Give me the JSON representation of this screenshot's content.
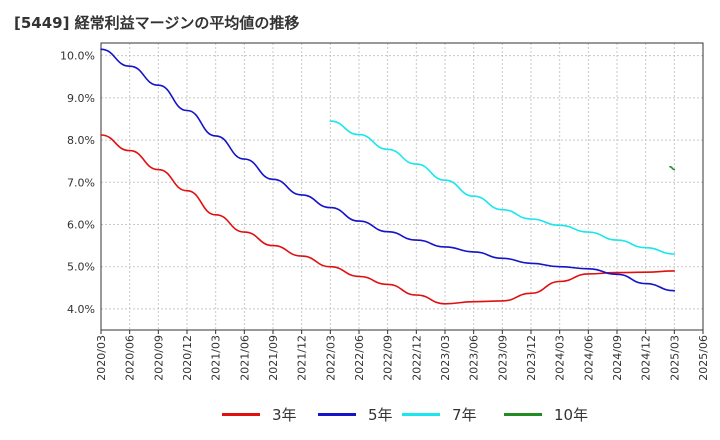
{
  "page": {
    "title": "[5449]  経常利益マージンの平均値の推移"
  },
  "chart_data": {
    "type": "line",
    "title": "[5449]  経常利益マージンの平均値の推移",
    "xlabel": "",
    "ylabel": "",
    "x_ticks": [
      "2020/03",
      "2020/06",
      "2020/09",
      "2020/12",
      "2021/03",
      "2021/06",
      "2021/09",
      "2021/12",
      "2022/03",
      "2022/06",
      "2022/09",
      "2022/12",
      "2023/03",
      "2023/06",
      "2023/09",
      "2023/12",
      "2024/03",
      "2024/06",
      "2024/09",
      "2024/12",
      "2025/03",
      "2025/06"
    ],
    "y_ticks": [
      "4.0%",
      "5.0%",
      "6.0%",
      "7.0%",
      "8.0%",
      "9.0%",
      "10.0%"
    ],
    "ylim": [
      3.5,
      10.3
    ],
    "grid": true,
    "legend_position": "bottom",
    "series": [
      {
        "name": "3年",
        "color": "#e01010",
        "values": [
          8.12,
          7.75,
          7.3,
          6.8,
          6.23,
          5.82,
          5.5,
          5.25,
          5.0,
          4.77,
          4.58,
          4.33,
          4.12,
          4.17,
          4.19,
          4.37,
          4.65,
          4.83,
          4.86,
          4.87,
          4.9,
          null
        ]
      },
      {
        "name": "5年",
        "color": "#1414c8",
        "values": [
          10.15,
          9.75,
          9.3,
          8.7,
          8.1,
          7.55,
          7.07,
          6.7,
          6.4,
          6.08,
          5.83,
          5.63,
          5.47,
          5.35,
          5.2,
          5.08,
          5.0,
          4.95,
          4.82,
          4.6,
          4.43,
          null
        ]
      },
      {
        "name": "7年",
        "color": "#19e6ee",
        "values": [
          null,
          null,
          null,
          null,
          null,
          null,
          null,
          null,
          8.45,
          8.13,
          7.78,
          7.43,
          7.05,
          6.67,
          6.35,
          6.13,
          5.98,
          5.82,
          5.63,
          5.45,
          5.3,
          null
        ]
      },
      {
        "name": "10年",
        "color": "#228b22",
        "values": [
          null,
          null,
          null,
          null,
          null,
          null,
          null,
          null,
          null,
          null,
          null,
          null,
          null,
          null,
          null,
          null,
          null,
          null,
          null,
          null,
          7.3,
          null
        ],
        "segment": [
          [
            19.85,
            7.37
          ],
          [
            20.0,
            7.3
          ]
        ]
      }
    ]
  },
  "legend": {
    "items": [
      {
        "label": "3年",
        "color": "#e01010"
      },
      {
        "label": "5年",
        "color": "#1414c8"
      },
      {
        "label": "7年",
        "color": "#19e6ee"
      },
      {
        "label": "10年",
        "color": "#228b22"
      }
    ]
  }
}
